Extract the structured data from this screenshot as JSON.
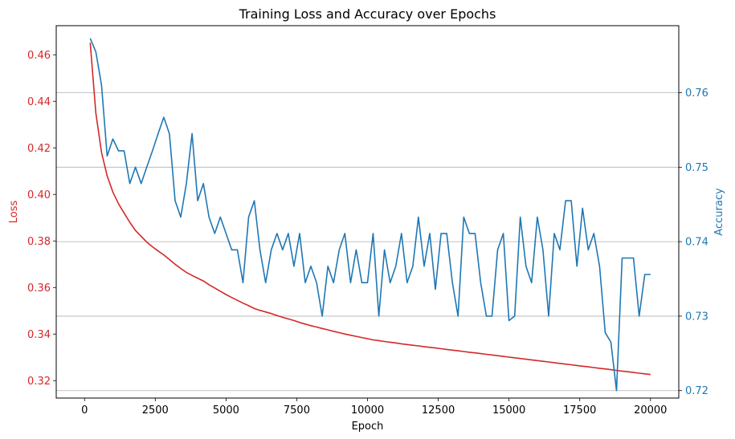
{
  "chart_data": {
    "type": "line",
    "title": "Training Loss and Accuracy over Epochs",
    "xlabel": "Epoch",
    "ylabel_left": "Loss",
    "ylabel_right": "Accuracy",
    "xlim": [
      -1000,
      21000
    ],
    "ylim_left": [
      0.3125,
      0.4725
    ],
    "ylim_right": [
      0.719,
      0.769
    ],
    "x_ticks": [
      0,
      2500,
      5000,
      7500,
      10000,
      12500,
      15000,
      17500,
      20000
    ],
    "y_ticks_left": [
      "0.32",
      "0.34",
      "0.36",
      "0.38",
      "0.40",
      "0.42",
      "0.44",
      "0.46"
    ],
    "y_ticks_right": [
      "0.72",
      "0.73",
      "0.74",
      "0.75",
      "0.76"
    ],
    "grid": "right-axis horizontal",
    "colors": {
      "loss": "#d62728",
      "accuracy": "#1f77b4",
      "grid": "#b0b0b0"
    },
    "x_start": 200,
    "x_step": 200,
    "series": [
      {
        "name": "Loss",
        "axis": "left",
        "values": [
          0.4652,
          0.435,
          0.418,
          0.408,
          0.401,
          0.396,
          0.392,
          0.388,
          0.3845,
          0.382,
          0.3795,
          0.3775,
          0.3757,
          0.374,
          0.372,
          0.37,
          0.3682,
          0.3665,
          0.3652,
          0.364,
          0.3628,
          0.3612,
          0.3598,
          0.3584,
          0.357,
          0.3557,
          0.3545,
          0.3533,
          0.3522,
          0.351,
          0.3502,
          0.3495,
          0.3488,
          0.348,
          0.3472,
          0.3465,
          0.3458,
          0.345,
          0.3443,
          0.3436,
          0.343,
          0.3424,
          0.3418,
          0.3412,
          0.3406,
          0.34,
          0.3395,
          0.339,
          0.3385,
          0.338,
          0.3375,
          0.3372,
          0.3368,
          0.3365,
          0.3362,
          0.3358,
          0.3355,
          0.3352,
          0.3349,
          0.3346,
          0.3343,
          0.334,
          0.3337,
          0.3334,
          0.3331,
          0.3328,
          0.3325,
          0.3322,
          0.3319,
          0.3316,
          0.3313,
          0.331,
          0.3307,
          0.3304,
          0.3301,
          0.3298,
          0.3295,
          0.3292,
          0.3289,
          0.3286,
          0.3283,
          0.328,
          0.3277,
          0.3274,
          0.3271,
          0.3268,
          0.3265,
          0.3262,
          0.3259,
          0.3256,
          0.3253,
          0.325,
          0.3247,
          0.3244,
          0.3241,
          0.3238,
          0.3235,
          0.3232,
          0.3229,
          0.3226
        ]
      },
      {
        "name": "Accuracy",
        "axis": "right",
        "values": [
          0.7673,
          0.7655,
          0.761,
          0.7515,
          0.7538,
          0.7522,
          0.7522,
          0.7478,
          0.75,
          0.7478,
          0.75,
          0.7522,
          0.7545,
          0.7567,
          0.7545,
          0.7455,
          0.7433,
          0.7478,
          0.7545,
          0.7455,
          0.7478,
          0.7433,
          0.7411,
          0.7433,
          0.7411,
          0.7389,
          0.7389,
          0.7345,
          0.7433,
          0.7455,
          0.7389,
          0.7345,
          0.7389,
          0.7411,
          0.7389,
          0.7411,
          0.7367,
          0.7411,
          0.7345,
          0.7367,
          0.7345,
          0.73,
          0.7367,
          0.7345,
          0.7389,
          0.7411,
          0.7345,
          0.7389,
          0.7345,
          0.7345,
          0.7411,
          0.73,
          0.7389,
          0.7345,
          0.7367,
          0.7411,
          0.7345,
          0.7367,
          0.7433,
          0.7367,
          0.7411,
          0.7336,
          0.7411,
          0.7411,
          0.7345,
          0.73,
          0.7433,
          0.7411,
          0.7411,
          0.7345,
          0.73,
          0.73,
          0.7389,
          0.7411,
          0.7294,
          0.73,
          0.7433,
          0.7367,
          0.7345,
          0.7433,
          0.7389,
          0.73,
          0.7411,
          0.7389,
          0.7455,
          0.7455,
          0.7367,
          0.7445,
          0.7389,
          0.7411,
          0.7367,
          0.7278,
          0.7265,
          0.72,
          0.7378,
          0.7378,
          0.7378,
          0.73,
          0.7356,
          0.7356
        ]
      }
    ]
  }
}
